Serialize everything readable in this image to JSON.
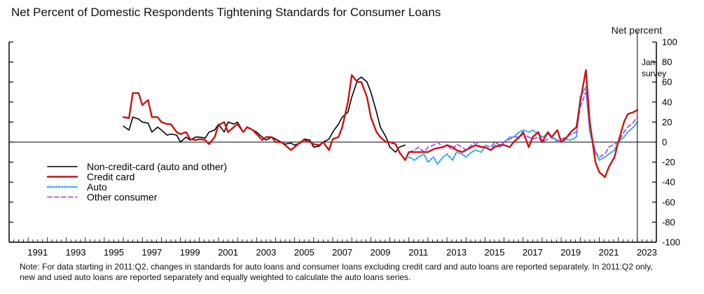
{
  "chart_data": {
    "type": "line",
    "title": "Net Percent of Domestic Respondents Tightening Standards for Consumer Loans",
    "ylabel": "Net percent",
    "ylim": [
      -100,
      100
    ],
    "xlim": [
      1990,
      2024
    ],
    "y_ticks": [
      100,
      80,
      60,
      40,
      20,
      0,
      -20,
      -40,
      -60,
      -80,
      -100
    ],
    "y_tick_labels": [
      "100",
      "80",
      "60",
      "40",
      "20",
      "0",
      "-20",
      "-40",
      "-60",
      "-80",
      "-100"
    ],
    "x_ticks": [
      1991,
      1993,
      1995,
      1997,
      1999,
      2001,
      2003,
      2005,
      2007,
      2009,
      2011,
      2013,
      2015,
      2017,
      2019,
      2021,
      2023
    ],
    "x_tick_labels": [
      "1991",
      "1993",
      "1995",
      "1997",
      "1999",
      "2001",
      "2003",
      "2005",
      "2007",
      "2009",
      "2011",
      "2013",
      "2015",
      "2017",
      "2019",
      "2021",
      "2023"
    ],
    "annotation": {
      "x": 2023.0,
      "line1": "Jan.",
      "line2": "survey"
    },
    "legend_position": "lower-left",
    "series": [
      {
        "name": "Non-credit-card (auto and other)",
        "color": "#000000",
        "dash": "solid",
        "x": [
          1996.0,
          1996.3,
          1996.5,
          1996.8,
          1997.0,
          1997.3,
          1997.5,
          1997.8,
          1998.0,
          1998.3,
          1998.5,
          1998.8,
          1999.0,
          1999.3,
          1999.5,
          1999.8,
          2000.0,
          2000.3,
          2000.5,
          2000.8,
          2001.0,
          2001.3,
          2001.5,
          2001.8,
          2002.0,
          2002.3,
          2002.5,
          2002.8,
          2003.0,
          2003.3,
          2003.5,
          2003.8,
          2004.0,
          2004.3,
          2004.5,
          2004.8,
          2005.0,
          2005.3,
          2005.5,
          2005.8,
          2006.0,
          2006.3,
          2006.5,
          2006.8,
          2007.0,
          2007.3,
          2007.5,
          2007.8,
          2008.0,
          2008.3,
          2008.5,
          2008.8,
          2009.0,
          2009.3,
          2009.5,
          2009.8,
          2010.0,
          2010.3,
          2010.5,
          2010.8
        ],
        "y": [
          16,
          12,
          25,
          23,
          20,
          19,
          10,
          15,
          12,
          7,
          8,
          7,
          0,
          5,
          2,
          5,
          5,
          4,
          10,
          12,
          18,
          10,
          20,
          18,
          20,
          10,
          15,
          12,
          10,
          5,
          2,
          5,
          3,
          0,
          -2,
          -1,
          -3,
          -1,
          3,
          2,
          -5,
          -4,
          0,
          3,
          10,
          18,
          25,
          30,
          45,
          62,
          65,
          60,
          50,
          30,
          15,
          5,
          -5,
          -10,
          -5,
          -3
        ]
      },
      {
        "name": "Credit card",
        "color": "#cc1111",
        "dash": "solid",
        "x": [
          1996.0,
          1996.3,
          1996.5,
          1996.8,
          1997.0,
          1997.3,
          1997.5,
          1997.8,
          1998.0,
          1998.3,
          1998.5,
          1998.8,
          1999.0,
          1999.3,
          1999.5,
          1999.8,
          2000.0,
          2000.3,
          2000.5,
          2000.8,
          2001.0,
          2001.3,
          2001.5,
          2001.8,
          2002.0,
          2002.3,
          2002.5,
          2002.8,
          2003.0,
          2003.3,
          2003.5,
          2003.8,
          2004.0,
          2004.3,
          2004.5,
          2004.8,
          2005.0,
          2005.3,
          2005.5,
          2005.8,
          2006.0,
          2006.3,
          2006.5,
          2006.8,
          2007.0,
          2007.3,
          2007.5,
          2007.8,
          2008.0,
          2008.3,
          2008.5,
          2008.8,
          2009.0,
          2009.3,
          2009.5,
          2009.8,
          2010.0,
          2010.3,
          2010.5,
          2010.8,
          2011.0,
          2011.3,
          2011.5,
          2011.8,
          2012.0,
          2012.3,
          2012.5,
          2012.8,
          2013.0,
          2013.3,
          2013.5,
          2013.8,
          2014.0,
          2014.3,
          2014.5,
          2014.8,
          2015.0,
          2015.3,
          2015.5,
          2015.8,
          2016.0,
          2016.3,
          2016.5,
          2016.8,
          2017.0,
          2017.3,
          2017.5,
          2017.8,
          2018.0,
          2018.3,
          2018.5,
          2018.8,
          2019.0,
          2019.3,
          2019.5,
          2019.8,
          2020.0,
          2020.3,
          2020.5,
          2020.8,
          2021.0,
          2021.3,
          2021.5,
          2021.8,
          2022.0,
          2022.3,
          2022.5,
          2022.8,
          2023.0
        ],
        "y": [
          25,
          24,
          49,
          49,
          37,
          42,
          25,
          25,
          20,
          18,
          18,
          10,
          8,
          10,
          3,
          2,
          3,
          2,
          -2,
          5,
          17,
          20,
          10,
          15,
          18,
          10,
          15,
          12,
          8,
          2,
          5,
          5,
          0,
          0,
          -3,
          -8,
          -5,
          0,
          2,
          0,
          -2,
          -3,
          0,
          -8,
          3,
          5,
          15,
          40,
          67,
          60,
          60,
          45,
          25,
          10,
          5,
          0,
          0,
          -2,
          -10,
          -18,
          -10,
          -10,
          -10,
          -10,
          -10,
          -7,
          -6,
          -5,
          -3,
          -5,
          -8,
          -10,
          -8,
          -5,
          -3,
          -5,
          -5,
          -8,
          -5,
          -3,
          -3,
          -5,
          0,
          5,
          10,
          -5,
          5,
          10,
          0,
          10,
          5,
          12,
          0,
          5,
          10,
          15,
          40,
          72,
          20,
          -20,
          -30,
          -35,
          -25,
          -15,
          0,
          20,
          28,
          30,
          32
        ]
      },
      {
        "name": "Auto",
        "color": "#2aa4e6",
        "dash": "dotted",
        "x": [
          2011.0,
          2011.3,
          2011.5,
          2011.8,
          2012.0,
          2012.3,
          2012.5,
          2012.8,
          2013.0,
          2013.3,
          2013.5,
          2013.8,
          2014.0,
          2014.3,
          2014.5,
          2014.8,
          2015.0,
          2015.3,
          2015.5,
          2015.8,
          2016.0,
          2016.3,
          2016.5,
          2016.8,
          2017.0,
          2017.3,
          2017.5,
          2017.8,
          2018.0,
          2018.3,
          2018.5,
          2018.8,
          2019.0,
          2019.3,
          2019.5,
          2019.8,
          2020.0,
          2020.3,
          2020.5,
          2020.8,
          2021.0,
          2021.3,
          2021.5,
          2021.8,
          2022.0,
          2022.3,
          2022.5,
          2022.8,
          2023.0
        ],
        "y": [
          -15,
          -18,
          -15,
          -12,
          -20,
          -15,
          -22,
          -15,
          -12,
          -18,
          -10,
          -12,
          -15,
          -10,
          -8,
          -10,
          -5,
          -8,
          -3,
          -5,
          0,
          5,
          5,
          10,
          12,
          10,
          12,
          8,
          5,
          8,
          5,
          2,
          0,
          3,
          2,
          5,
          45,
          55,
          10,
          -10,
          -18,
          -15,
          -12,
          -8,
          0,
          5,
          10,
          15,
          20
        ]
      },
      {
        "name": "Other consumer",
        "color": "#a64ee8",
        "dash": "dashed",
        "x": [
          2011.0,
          2011.3,
          2011.5,
          2011.8,
          2012.0,
          2012.3,
          2012.5,
          2012.8,
          2013.0,
          2013.3,
          2013.5,
          2013.8,
          2014.0,
          2014.3,
          2014.5,
          2014.8,
          2015.0,
          2015.3,
          2015.5,
          2015.8,
          2016.0,
          2016.3,
          2016.5,
          2016.8,
          2017.0,
          2017.3,
          2017.5,
          2017.8,
          2018.0,
          2018.3,
          2018.5,
          2018.8,
          2019.0,
          2019.3,
          2019.5,
          2019.8,
          2020.0,
          2020.3,
          2020.5,
          2020.8,
          2021.0,
          2021.3,
          2021.5,
          2021.8,
          2022.0,
          2022.3,
          2022.5,
          2022.8,
          2023.0
        ],
        "y": [
          -10,
          -8,
          -5,
          -10,
          -5,
          -3,
          0,
          -5,
          -3,
          -8,
          -2,
          -5,
          -8,
          -3,
          0,
          -5,
          -3,
          -5,
          0,
          -3,
          0,
          3,
          5,
          5,
          8,
          5,
          3,
          5,
          0,
          3,
          5,
          0,
          3,
          5,
          8,
          10,
          35,
          50,
          15,
          -10,
          -15,
          -12,
          -5,
          -2,
          0,
          10,
          15,
          20,
          25
        ]
      }
    ]
  },
  "header": {
    "title": "Net Percent of Domestic Respondents Tightening Standards for Consumer Loans",
    "y_axis_label": "Net percent"
  },
  "footnote": "Note: For data starting in 2011:Q2, changes in standards for auto loans and consumer loans excluding credit card and auto loans are reported separately. In 2011:Q2 only, new and used auto loans are reported separately and equally weighted to calculate the auto loans series."
}
